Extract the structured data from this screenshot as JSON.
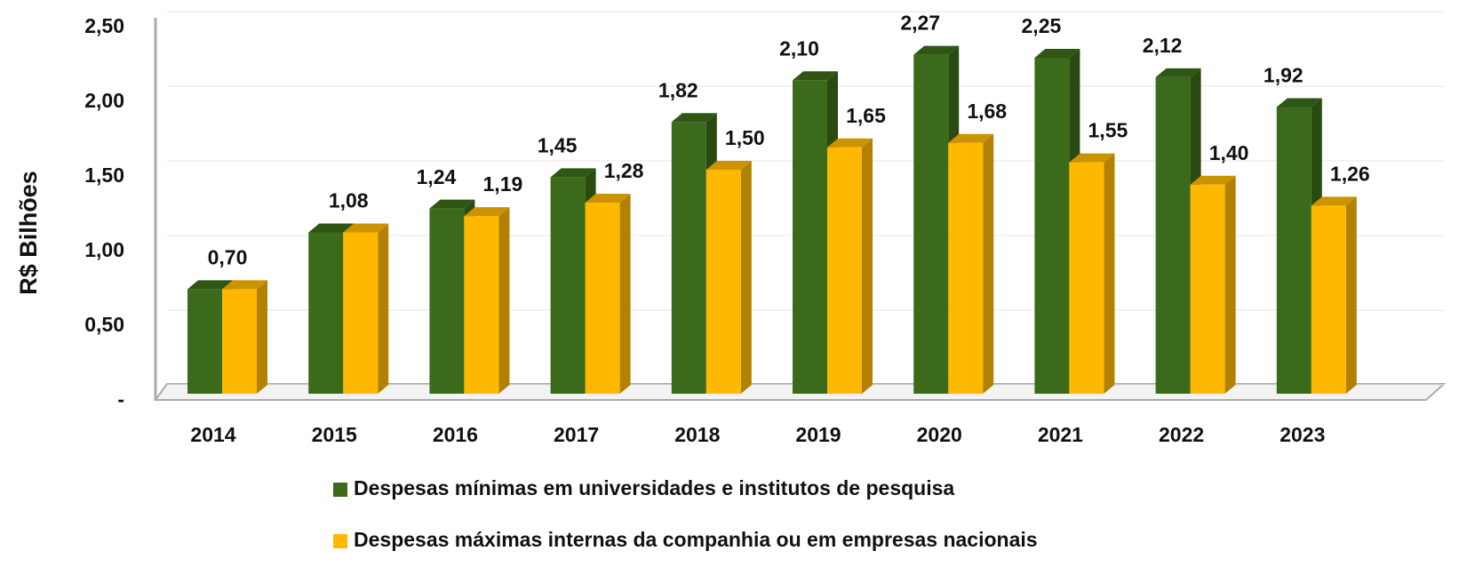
{
  "chart_data": {
    "type": "bar3d",
    "y_label": "R$ Bilhões",
    "categories": [
      "2014",
      "2015",
      "2016",
      "2017",
      "2018",
      "2019",
      "2020",
      "2021",
      "2022",
      "2023"
    ],
    "series": [
      {
        "name": "Despesas mínimas em universidades e institutos de pesquisa",
        "color": "#3b6b1a",
        "values": [
          0.7,
          1.08,
          1.24,
          1.45,
          1.82,
          2.1,
          2.27,
          2.25,
          2.12,
          1.92
        ],
        "value_labels": [
          "0,70",
          "1,08",
          "1,24",
          "1,45",
          "1,82",
          "2,10",
          "2,27",
          "2,25",
          "2,12",
          "1,92"
        ]
      },
      {
        "name": "Despesas máximas internas da companhia ou em empresas nacionais",
        "color": "#ffb800",
        "values": [
          0.7,
          1.08,
          1.19,
          1.28,
          1.5,
          1.65,
          1.68,
          1.55,
          1.4,
          1.26
        ],
        "value_labels": [
          null,
          null,
          "1,19",
          "1,28",
          "1,50",
          "1,65",
          "1,68",
          "1,55",
          "1,40",
          "1,26"
        ]
      }
    ],
    "ylim": [
      0,
      2.5
    ],
    "yticks": [
      {
        "value": 0,
        "label": "-"
      },
      {
        "value": 0.5,
        "label": "0,50"
      },
      {
        "value": 1,
        "label": "1,00"
      },
      {
        "value": 1.5,
        "label": "1,50"
      },
      {
        "value": 2,
        "label": "2,00"
      },
      {
        "value": 2.5,
        "label": "2,50"
      }
    ],
    "grid": true
  }
}
